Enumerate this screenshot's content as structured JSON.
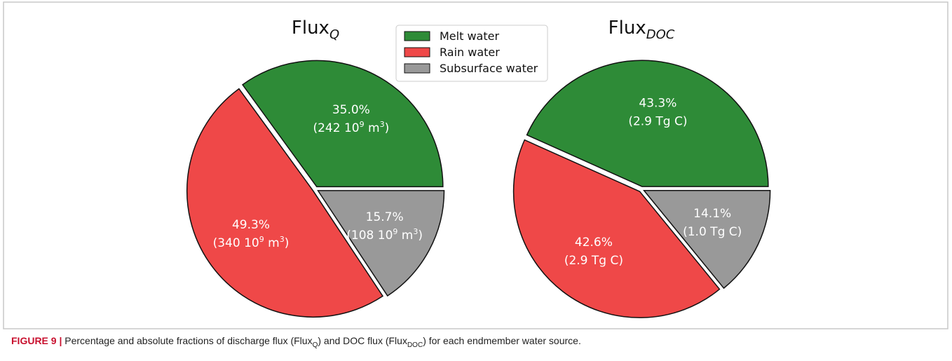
{
  "chart_data": [
    {
      "type": "pie",
      "title": {
        "text": "Flux",
        "subscript": "Q"
      },
      "values": [
        35.0,
        49.3,
        15.7
      ],
      "value_labels": [
        "35.0%",
        "49.3%",
        "15.7%"
      ],
      "absolute_labels": [
        [
          {
            "t": "(242 10"
          },
          {
            "t": "9",
            "sup": true
          },
          {
            "t": " m"
          },
          {
            "t": "3",
            "sup": true
          },
          {
            "t": ")"
          }
        ],
        [
          {
            "t": "(340 10"
          },
          {
            "t": "9",
            "sup": true
          },
          {
            "t": " m"
          },
          {
            "t": "3",
            "sup": true
          },
          {
            "t": ")"
          }
        ],
        [
          {
            "t": "(108 10"
          },
          {
            "t": "9",
            "sup": true
          },
          {
            "t": " m"
          },
          {
            "t": "3",
            "sup": true
          },
          {
            "t": ")"
          }
        ]
      ]
    },
    {
      "type": "pie",
      "title": {
        "text": "Flux",
        "subscript": "DOC"
      },
      "values": [
        43.3,
        42.6,
        14.1
      ],
      "value_labels": [
        "43.3%",
        "42.6%",
        "14.1%"
      ],
      "absolute_labels": [
        [
          {
            "t": "(2.9 Tg C)"
          }
        ],
        [
          {
            "t": "(2.9 Tg C)"
          }
        ],
        [
          {
            "t": "(1.0 Tg C)"
          }
        ]
      ]
    }
  ],
  "legend": {
    "labels": [
      "Melt water",
      "Rain water",
      "Subsurface water"
    ],
    "colors": [
      "#2e8b37",
      "#ef4848",
      "#999999"
    ]
  },
  "caption": [
    {
      "t": "FIGURE 9 |",
      "bold": true
    },
    {
      "t": " Percentage and absolute fractions of discharge flux (Flux"
    },
    {
      "t": "Q",
      "sub": true
    },
    {
      "t": ") and DOC flux (Flux"
    },
    {
      "t": "DOC",
      "sub": true
    },
    {
      "t": ") for each endmember water source."
    }
  ]
}
